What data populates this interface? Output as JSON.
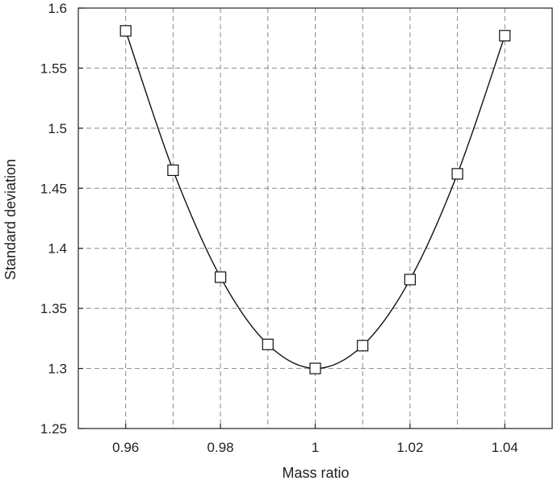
{
  "chart_data": {
    "type": "line",
    "title": "",
    "xlabel": "Mass ratio",
    "ylabel": "Standard deviation",
    "xlim": [
      0.95,
      1.05
    ],
    "ylim": [
      1.25,
      1.6
    ],
    "xticks": [
      0.96,
      0.98,
      1.0,
      1.02,
      1.04
    ],
    "xtick_labels": [
      "0.96",
      "0.98",
      "1",
      "1.02",
      "1.04"
    ],
    "yticks": [
      1.25,
      1.3,
      1.35,
      1.4,
      1.45,
      1.5,
      1.55,
      1.6
    ],
    "ytick_labels": [
      "1.25",
      "1.3",
      "1.35",
      "1.4",
      "1.45",
      "1.5",
      "1.55",
      "1.6"
    ],
    "xgrid": [
      0.96,
      0.97,
      0.98,
      0.99,
      1.0,
      1.01,
      1.02,
      1.03,
      1.04
    ],
    "grid": true,
    "marker": "square",
    "series": [
      {
        "x": [
          0.96,
          0.97,
          0.98,
          0.99,
          1.0,
          1.01,
          1.02,
          1.03,
          1.04
        ],
        "y": [
          1.581,
          1.465,
          1.376,
          1.32,
          1.3,
          1.319,
          1.374,
          1.462,
          1.577
        ]
      }
    ]
  }
}
